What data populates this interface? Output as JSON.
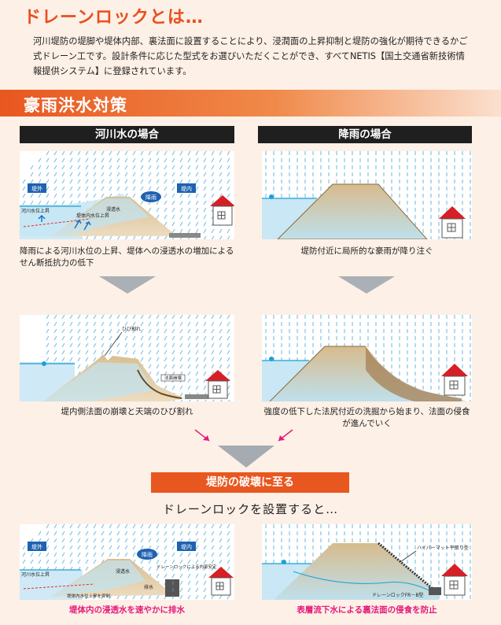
{
  "header": {
    "title": "ドレーンロックとは…",
    "intro": "河川堤防の堤脚や堤体内部、裏法面に設置することにより、浸潤面の上昇抑制と堤防の強化が期待できるかご式ドレーン工です。設計条件に応じた型式をお選びいただくことができ、すべてNETIS【国土交通省新技術情報提供システム】に登録されています。"
  },
  "section": {
    "title": "豪雨洪水対策"
  },
  "columns": {
    "left_title": "河川水の場合",
    "right_title": "降雨の場合"
  },
  "diagrams": {
    "river1": {
      "label_outside": "堤外",
      "label_inside": "堤内",
      "label_rain": "降雨",
      "label_river_rise": "河川水位上昇",
      "label_seep_rise": "堤体内水位上昇",
      "label_seepage": "浸透水",
      "caption": "降雨による河川水位の上昇、堤体への浸透水の増加によるせん断抵抗力の低下"
    },
    "rain1": {
      "caption": "堤防付近に局所的な豪雨が降り注ぐ"
    },
    "river2": {
      "label_crack": "ひび割れ",
      "label_slope_collapse": "法面崩壊",
      "caption": "堤内側法面の崩壊と天端のひび割れ"
    },
    "rain2": {
      "caption": "強度の低下した法尻付近の洗掘から始まり、法面の侵食が進んでいく"
    },
    "river3": {
      "label_outside": "堤外",
      "label_inside": "堤内",
      "label_rain": "降雨",
      "label_river_rise": "河川水位上昇",
      "label_seepage": "浸透水",
      "label_drain_box": "ドレーンロックによる内部安定",
      "label_drain": "排水",
      "label_seep_suppress": "堤体内水位上昇を抑制",
      "caption": "堤体内の浸透水を速やかに排水"
    },
    "rain3": {
      "label_mat": "ハイパーマット平張り型",
      "label_fr": "ドレーンロックFR－B型",
      "caption": "表層流下水による裏法面の侵食を防止"
    }
  },
  "result": {
    "label": "堤防の破壊に至る",
    "subhead": "ドレーンロックを設置すると…"
  },
  "colors": {
    "accent": "#e8501f",
    "pink": "#e6197a",
    "water": "#bfe3f3",
    "soil": "#e3caa0"
  }
}
